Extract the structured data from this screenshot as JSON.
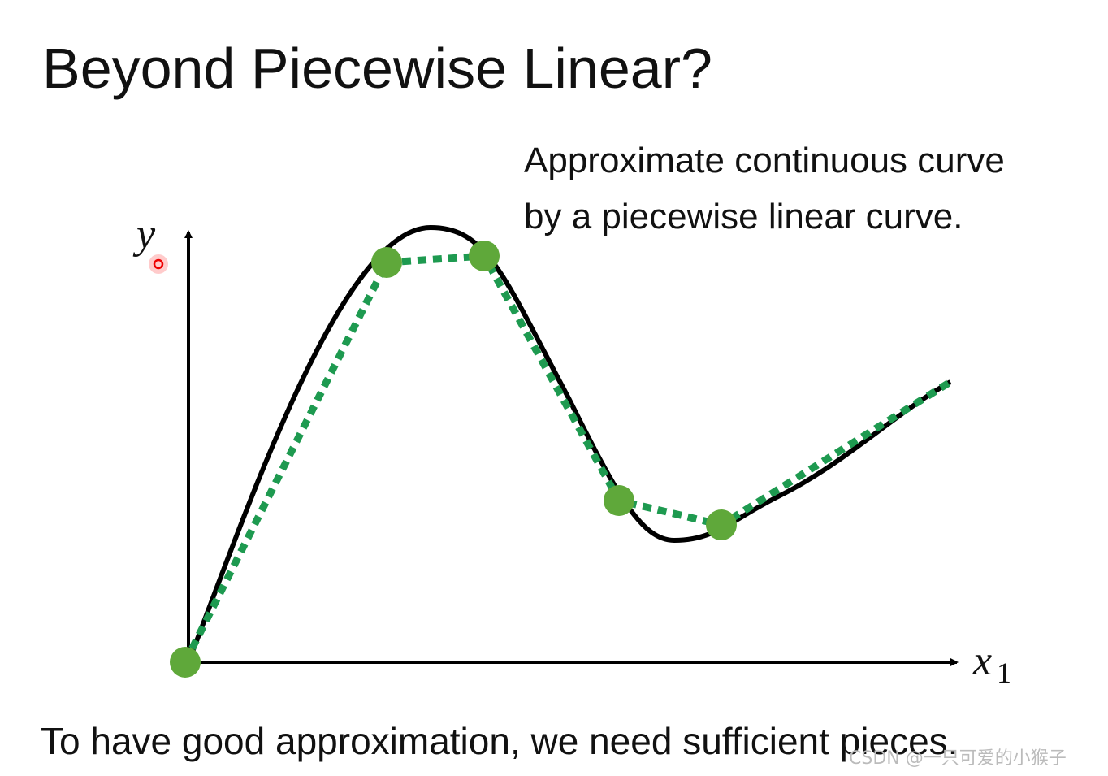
{
  "title": "Beyond Piecewise Linear?",
  "annotation": [
    "Approximate continuous curve",
    "by a piecewise linear curve."
  ],
  "axes": {
    "y": "y",
    "x": "x",
    "x_subscript": "1"
  },
  "caption": "To have good approximation, we need sufficient pieces.",
  "watermark": "CSDN @一只可爱的小猴子"
}
